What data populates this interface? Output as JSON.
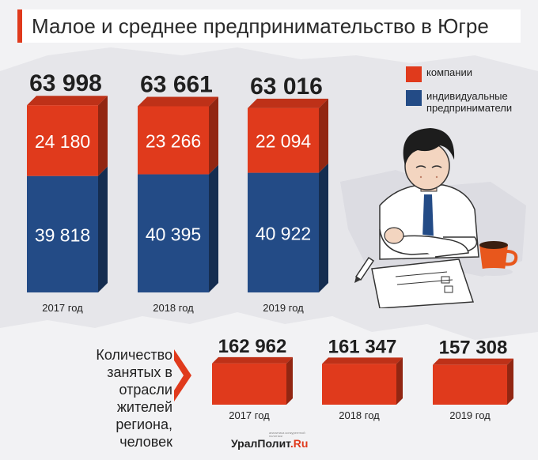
{
  "title": "Малое и среднее предпринимательство в Югре",
  "colors": {
    "companies": "#e03a1c",
    "entrepreneurs": "#234b86",
    "accent": "#e03a1c",
    "background": "#f2f2f4"
  },
  "legend": {
    "companies": "компании",
    "entrepreneurs": "индивидуальные предприниматели"
  },
  "employed_caption": "Количество занятых в отрасли жителей региона, человек",
  "brand": {
    "name": "УралПолит",
    "suffix": ".Ru",
    "tagline": "аналитика конкурентной политики"
  },
  "chart_data": [
    {
      "type": "bar",
      "stacked": true,
      "categories": [
        "2017 год",
        "2018 год",
        "2019 год"
      ],
      "series": [
        {
          "name": "индивидуальные предприниматели",
          "values": [
            39818,
            40395,
            40922
          ]
        },
        {
          "name": "компании",
          "values": [
            24180,
            23266,
            22094
          ]
        }
      ],
      "totals": [
        63998,
        63661,
        63016
      ],
      "value_labels": {
        "totals": [
          "63 998",
          "63 661",
          "63 016"
        ],
        "entrepreneurs": [
          "39 818",
          "40 395",
          "40 922"
        ],
        "companies": [
          "24 180",
          "23 266",
          "22 094"
        ]
      }
    },
    {
      "type": "bar",
      "categories": [
        "2017 год",
        "2018 год",
        "2019 год"
      ],
      "values": [
        162962,
        161347,
        157308
      ],
      "value_labels": [
        "162 962",
        "161 347",
        "157 308"
      ]
    }
  ]
}
